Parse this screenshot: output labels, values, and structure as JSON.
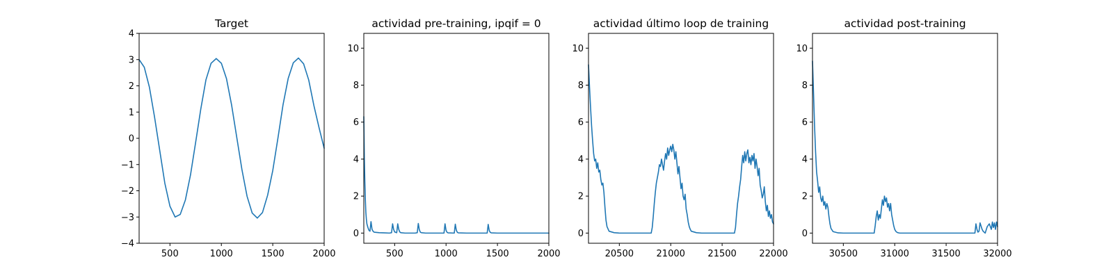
{
  "figure": {
    "line_color": "#1f77b4",
    "background": "#ffffff"
  },
  "chart_data": [
    {
      "type": "line",
      "title": "Target",
      "xlim": [
        200,
        2000
      ],
      "ylim": [
        -4,
        4
      ],
      "xticks": [
        500,
        1000,
        1500,
        2000
      ],
      "yticks": [
        -4,
        -3,
        -2,
        -1,
        0,
        1,
        2,
        3,
        4
      ],
      "series": [
        {
          "x": [
            200,
            250,
            300,
            350,
            400,
            450,
            500,
            550,
            600,
            650,
            700,
            750,
            800,
            850,
            900,
            950,
            1000,
            1050,
            1100,
            1150,
            1200,
            1250,
            1300,
            1350,
            1400,
            1450,
            1500,
            1550,
            1600,
            1650,
            1700,
            1750,
            1800,
            1850,
            1900,
            1950,
            2000
          ],
          "y": [
            3.0,
            2.71,
            1.95,
            0.81,
            -0.45,
            -1.71,
            -2.59,
            -3.0,
            -2.9,
            -2.35,
            -1.39,
            -0.15,
            1.12,
            2.23,
            2.86,
            3.04,
            2.86,
            2.27,
            1.26,
            0.03,
            -1.19,
            -2.21,
            -2.85,
            -3.04,
            -2.83,
            -2.17,
            -1.23,
            0.0,
            1.28,
            2.28,
            2.88,
            3.06,
            2.84,
            2.22,
            1.25,
            0.41,
            -0.38
          ]
        }
      ]
    },
    {
      "type": "line",
      "title": "actividad pre-training, ipqif = 0",
      "xlim": [
        200,
        2000
      ],
      "ylim": [
        -0.55,
        10.8
      ],
      "xticks": [
        500,
        1000,
        1500,
        2000
      ],
      "yticks": [
        0,
        2,
        4,
        6,
        8,
        10
      ],
      "series": [
        {
          "x": [
            200,
            205,
            210,
            215,
            220,
            225,
            230,
            240,
            250,
            260,
            270,
            280,
            290,
            300,
            350,
            400,
            450,
            470,
            480,
            490,
            500,
            520,
            530,
            540,
            550,
            560,
            600,
            700,
            720,
            730,
            740,
            750,
            760,
            800,
            900,
            980,
            990,
            1000,
            1010,
            1020,
            1080,
            1090,
            1100,
            1110,
            1120,
            1200,
            1300,
            1400,
            1410,
            1420,
            1430,
            1440,
            1500,
            1600,
            1700,
            1800,
            1900,
            2000
          ],
          "y": [
            6.3,
            4.1,
            2.8,
            1.8,
            1.1,
            0.75,
            0.5,
            0.3,
            0.15,
            0.1,
            0.62,
            0.2,
            0.1,
            0.05,
            0.02,
            0.01,
            0.0,
            0.02,
            0.5,
            0.2,
            0.06,
            0.02,
            0.5,
            0.2,
            0.06,
            0.02,
            0.0,
            0.0,
            0.02,
            0.52,
            0.18,
            0.05,
            0.02,
            0.0,
            0.0,
            0.0,
            0.5,
            0.15,
            0.04,
            0.01,
            0.0,
            0.48,
            0.15,
            0.04,
            0.01,
            0.0,
            0.0,
            0.0,
            0.47,
            0.14,
            0.04,
            0.01,
            0.0,
            0.0,
            0.0,
            0.0,
            0.0,
            0.0
          ]
        }
      ]
    },
    {
      "type": "line",
      "title": "actividad último loop de training",
      "xlim": [
        20200,
        22000
      ],
      "ylim": [
        -0.55,
        10.8
      ],
      "xticks": [
        20500,
        21000,
        21500,
        22000
      ],
      "yticks": [
        0,
        2,
        4,
        6,
        8,
        10
      ],
      "series": [
        {
          "x": [
            20200,
            20210,
            20220,
            20230,
            20240,
            20250,
            20260,
            20270,
            20280,
            20290,
            20300,
            20310,
            20320,
            20330,
            20340,
            20350,
            20360,
            20370,
            20380,
            20400,
            20450,
            20500,
            20600,
            20700,
            20800,
            20810,
            20820,
            20830,
            20840,
            20850,
            20860,
            20870,
            20880,
            20890,
            20900,
            20910,
            20920,
            20930,
            20940,
            20950,
            20960,
            20970,
            20980,
            20990,
            21000,
            21010,
            21020,
            21030,
            21040,
            21050,
            21060,
            21070,
            21080,
            21090,
            21100,
            21110,
            21120,
            21130,
            21140,
            21150,
            21160,
            21170,
            21180,
            21190,
            21200,
            21250,
            21300,
            21400,
            21500,
            21600,
            21620,
            21630,
            21640,
            21650,
            21660,
            21670,
            21680,
            21690,
            21700,
            21710,
            21720,
            21730,
            21740,
            21750,
            21760,
            21770,
            21780,
            21790,
            21800,
            21810,
            21820,
            21830,
            21840,
            21850,
            21860,
            21870,
            21880,
            21890,
            21900,
            21910,
            21920,
            21930,
            21940,
            21950,
            21960,
            21970,
            21980,
            21990,
            22000
          ],
          "y": [
            9.1,
            7.9,
            6.8,
            5.8,
            5.0,
            4.3,
            3.9,
            4.0,
            3.5,
            3.8,
            3.3,
            3.4,
            2.9,
            2.6,
            2.7,
            2.2,
            1.4,
            0.7,
            0.35,
            0.1,
            0.02,
            0.0,
            0.0,
            0.0,
            0.0,
            0.0,
            0.3,
            0.9,
            1.6,
            2.2,
            2.7,
            3.0,
            3.3,
            3.7,
            3.6,
            4.0,
            3.7,
            3.4,
            3.9,
            4.3,
            4.0,
            4.6,
            4.2,
            4.5,
            4.7,
            4.4,
            4.8,
            4.5,
            4.0,
            4.4,
            3.8,
            3.2,
            3.6,
            3.0,
            2.4,
            2.7,
            2.0,
            1.8,
            2.1,
            1.3,
            1.0,
            0.6,
            0.35,
            0.2,
            0.1,
            0.02,
            0.0,
            0.0,
            0.0,
            0.0,
            0.0,
            0.3,
            1.0,
            1.6,
            2.0,
            2.5,
            2.9,
            3.6,
            4.2,
            3.8,
            4.4,
            3.9,
            4.3,
            4.5,
            3.8,
            4.1,
            3.7,
            4.2,
            3.9,
            4.3,
            3.5,
            4.0,
            3.6,
            3.1,
            3.5,
            2.6,
            2.3,
            1.9,
            2.1,
            2.5,
            1.7,
            1.2,
            1.5,
            0.9,
            1.2,
            0.8,
            1.0,
            0.6,
            0.5
          ]
        }
      ]
    },
    {
      "type": "line",
      "title": "actividad post-training",
      "xlim": [
        30200,
        32000
      ],
      "ylim": [
        -0.55,
        10.8
      ],
      "xticks": [
        30500,
        31000,
        31500,
        32000
      ],
      "yticks": [
        0,
        2,
        4,
        6,
        8,
        10
      ],
      "series": [
        {
          "x": [
            30200,
            30210,
            30220,
            30230,
            30240,
            30250,
            30260,
            30270,
            30280,
            30290,
            30300,
            30310,
            30320,
            30330,
            30340,
            30350,
            30360,
            30370,
            30380,
            30400,
            30450,
            30500,
            30600,
            30700,
            30800,
            30810,
            30820,
            30830,
            30840,
            30850,
            30860,
            30870,
            30880,
            30890,
            30900,
            30910,
            30920,
            30930,
            30940,
            30950,
            30960,
            30970,
            30980,
            30990,
            31000,
            31010,
            31020,
            31030,
            31040,
            31050,
            31100,
            31200,
            31400,
            31600,
            31750,
            31780,
            31790,
            31800,
            31810,
            31820,
            31830,
            31850,
            31860,
            31870,
            31880,
            31900,
            31920,
            31940,
            31950,
            31960,
            31970,
            31980,
            31990,
            32000
          ],
          "y": [
            9.3,
            7.6,
            5.8,
            4.4,
            3.3,
            2.8,
            2.2,
            2.5,
            1.9,
            1.7,
            2.0,
            1.5,
            1.7,
            1.3,
            1.6,
            1.4,
            0.9,
            0.5,
            0.25,
            0.08,
            0.01,
            0.0,
            0.0,
            0.0,
            0.0,
            0.4,
            0.9,
            1.2,
            0.7,
            1.0,
            0.8,
            1.3,
            1.8,
            1.5,
            2.0,
            1.7,
            1.9,
            1.4,
            1.6,
            1.2,
            1.6,
            1.0,
            0.7,
            0.4,
            0.2,
            0.1,
            0.05,
            0.02,
            0.01,
            0.0,
            0.0,
            0.0,
            0.0,
            0.0,
            0.0,
            0.0,
            0.5,
            0.2,
            0.05,
            0.1,
            0.55,
            0.2,
            0.1,
            0.05,
            0.0,
            0.35,
            0.5,
            0.2,
            0.6,
            0.3,
            0.55,
            0.2,
            0.6,
            0.35
          ]
        }
      ]
    }
  ]
}
